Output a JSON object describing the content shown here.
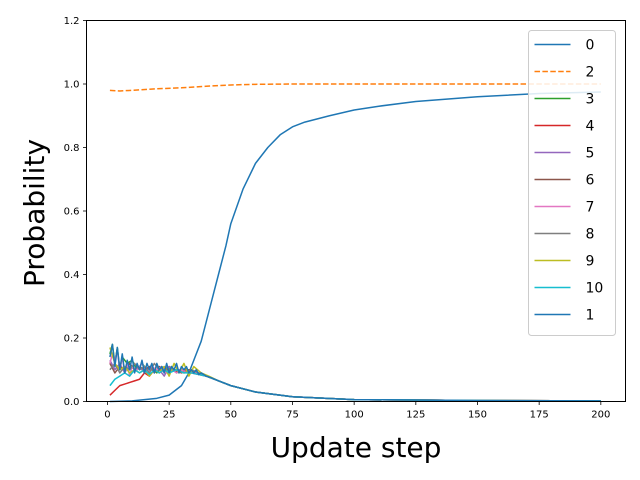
{
  "chart_data": {
    "type": "line",
    "title": "",
    "xlabel": "Update step",
    "ylabel": "Probability",
    "xlim": [
      -8.5,
      210
    ],
    "ylim": [
      0,
      1.2
    ],
    "x_ticks": [
      0,
      25,
      50,
      75,
      100,
      125,
      150,
      175,
      200
    ],
    "y_ticks": [
      0.0,
      0.2,
      0.4,
      0.6,
      0.8,
      1.0,
      1.2
    ],
    "x_tick_labels": [
      "0",
      "25",
      "50",
      "75",
      "100",
      "125",
      "150",
      "175",
      "200"
    ],
    "y_tick_labels": [
      "0.0",
      "0.2",
      "0.4",
      "0.6",
      "0.8",
      "1.0",
      "1.2"
    ],
    "grid": false,
    "legend_position": "upper right",
    "series": [
      {
        "name": "0",
        "color": "#1f77b4",
        "dash": "solid",
        "x": [
          1,
          10,
          20,
          25,
          30,
          33,
          35,
          38,
          40,
          42,
          45,
          48,
          50,
          55,
          60,
          65,
          70,
          75,
          80,
          90,
          100,
          110,
          125,
          150,
          175,
          200
        ],
        "y": [
          0.0,
          0.002,
          0.01,
          0.02,
          0.05,
          0.09,
          0.13,
          0.19,
          0.25,
          0.31,
          0.4,
          0.49,
          0.56,
          0.67,
          0.75,
          0.8,
          0.84,
          0.865,
          0.88,
          0.9,
          0.918,
          0.93,
          0.945,
          0.96,
          0.97,
          0.975
        ]
      },
      {
        "name": "2",
        "color": "#ff7f0e",
        "dash": "dashed",
        "x": [
          1,
          5,
          10,
          20,
          30,
          40,
          50,
          60,
          75,
          100,
          125,
          150,
          175,
          200
        ],
        "y": [
          0.98,
          0.978,
          0.98,
          0.985,
          0.988,
          0.993,
          0.997,
          0.999,
          1.0,
          1.0,
          1.0,
          1.0,
          1.0,
          1.0
        ]
      },
      {
        "name": "3",
        "color": "#2ca02c",
        "dash": "solid",
        "x": [
          1,
          2,
          3,
          4,
          5,
          6,
          8,
          10,
          12,
          14,
          16,
          18,
          20,
          22,
          24,
          26,
          28,
          30,
          33,
          36,
          40,
          45,
          50,
          60,
          75,
          100,
          150,
          200
        ],
        "y": [
          0.15,
          0.18,
          0.12,
          0.17,
          0.1,
          0.14,
          0.12,
          0.13,
          0.1,
          0.12,
          0.1,
          0.11,
          0.09,
          0.11,
          0.1,
          0.11,
          0.09,
          0.1,
          0.1,
          0.09,
          0.08,
          0.065,
          0.05,
          0.03,
          0.015,
          0.006,
          0.003,
          0.002
        ]
      },
      {
        "name": "4",
        "color": "#d62728",
        "dash": "solid",
        "x": [
          1,
          3,
          5,
          7,
          9,
          11,
          13,
          15,
          17,
          19,
          21,
          23,
          25,
          28,
          31,
          34,
          37,
          40,
          45,
          50,
          60,
          75,
          100,
          150,
          200
        ],
        "y": [
          0.02,
          0.035,
          0.05,
          0.055,
          0.06,
          0.065,
          0.07,
          0.09,
          0.08,
          0.1,
          0.09,
          0.1,
          0.11,
          0.095,
          0.1,
          0.09,
          0.085,
          0.08,
          0.065,
          0.05,
          0.03,
          0.015,
          0.006,
          0.003,
          0.002
        ]
      },
      {
        "name": "5",
        "color": "#9467bd",
        "dash": "solid",
        "x": [
          1,
          3,
          5,
          7,
          9,
          11,
          13,
          15,
          17,
          19,
          21,
          23,
          25,
          27,
          29,
          31,
          34,
          37,
          40,
          45,
          50,
          60,
          75,
          100,
          150,
          200
        ],
        "y": [
          0.13,
          0.1,
          0.12,
          0.09,
          0.12,
          0.1,
          0.11,
          0.09,
          0.11,
          0.1,
          0.1,
          0.08,
          0.11,
          0.1,
          0.1,
          0.09,
          0.1,
          0.09,
          0.08,
          0.065,
          0.05,
          0.03,
          0.015,
          0.006,
          0.003,
          0.002
        ]
      },
      {
        "name": "6",
        "color": "#8c564b",
        "dash": "solid",
        "x": [
          1,
          3,
          5,
          7,
          9,
          11,
          13,
          15,
          17,
          19,
          21,
          24,
          27,
          30,
          33,
          36,
          40,
          45,
          50,
          60,
          75,
          100,
          150,
          200
        ],
        "y": [
          0.12,
          0.09,
          0.11,
          0.1,
          0.12,
          0.1,
          0.11,
          0.1,
          0.11,
          0.09,
          0.11,
          0.1,
          0.1,
          0.09,
          0.1,
          0.09,
          0.08,
          0.065,
          0.05,
          0.03,
          0.015,
          0.006,
          0.003,
          0.002
        ]
      },
      {
        "name": "7",
        "color": "#e377c2",
        "dash": "solid",
        "x": [
          1,
          2,
          3,
          4,
          5,
          6,
          7,
          8,
          9,
          10,
          12,
          14,
          16,
          18,
          20,
          22,
          24,
          26,
          28,
          30,
          33,
          36,
          40,
          45,
          50,
          60,
          75,
          100,
          150,
          200
        ],
        "y": [
          0.12,
          0.15,
          0.13,
          0.16,
          0.1,
          0.14,
          0.09,
          0.12,
          0.08,
          0.11,
          0.1,
          0.12,
          0.09,
          0.11,
          0.1,
          0.11,
          0.09,
          0.1,
          0.09,
          0.1,
          0.09,
          0.09,
          0.08,
          0.065,
          0.05,
          0.03,
          0.015,
          0.006,
          0.003,
          0.002
        ]
      },
      {
        "name": "8",
        "color": "#7f7f7f",
        "dash": "solid",
        "x": [
          1,
          3,
          5,
          7,
          9,
          11,
          13,
          15,
          17,
          19,
          21,
          23,
          25,
          28,
          31,
          34,
          37,
          40,
          45,
          50,
          60,
          75,
          100,
          150,
          200
        ],
        "y": [
          0.1,
          0.12,
          0.09,
          0.11,
          0.1,
          0.12,
          0.1,
          0.11,
          0.09,
          0.12,
          0.1,
          0.11,
          0.1,
          0.1,
          0.09,
          0.1,
          0.09,
          0.08,
          0.065,
          0.05,
          0.03,
          0.015,
          0.006,
          0.003,
          0.002
        ]
      },
      {
        "name": "9",
        "color": "#bcbd22",
        "dash": "solid",
        "x": [
          1,
          3,
          5,
          7,
          9,
          11,
          13,
          15,
          17,
          19,
          21,
          23,
          25,
          27,
          29,
          31,
          33,
          35,
          38,
          41,
          45,
          50,
          60,
          75,
          100,
          150,
          200
        ],
        "y": [
          0.17,
          0.12,
          0.1,
          0.11,
          0.09,
          0.1,
          0.09,
          0.1,
          0.08,
          0.1,
          0.09,
          0.11,
          0.08,
          0.12,
          0.09,
          0.12,
          0.08,
          0.11,
          0.09,
          0.08,
          0.065,
          0.05,
          0.03,
          0.015,
          0.006,
          0.003,
          0.002
        ]
      },
      {
        "name": "10",
        "color": "#17becf",
        "dash": "solid",
        "x": [
          1,
          3,
          5,
          7,
          9,
          11,
          13,
          15,
          17,
          19,
          21,
          23,
          25,
          28,
          31,
          34,
          37,
          40,
          45,
          50,
          60,
          75,
          100,
          150,
          200
        ],
        "y": [
          0.05,
          0.07,
          0.08,
          0.09,
          0.08,
          0.1,
          0.09,
          0.1,
          0.085,
          0.1,
          0.09,
          0.1,
          0.09,
          0.1,
          0.09,
          0.09,
          0.085,
          0.08,
          0.065,
          0.05,
          0.03,
          0.015,
          0.006,
          0.003,
          0.002
        ]
      },
      {
        "name": "1",
        "color": "#1f77b4",
        "dash": "solid",
        "x": [
          1,
          2,
          3,
          4,
          5,
          6,
          7,
          8,
          9,
          10,
          11,
          12,
          13,
          14,
          15,
          16,
          17,
          18,
          19,
          20,
          21,
          22,
          23,
          24,
          25,
          26,
          27,
          28,
          29,
          30,
          31,
          32,
          33,
          34,
          35,
          36,
          37,
          38,
          40,
          42,
          45,
          50,
          55,
          60,
          75,
          100,
          150,
          200
        ],
        "y": [
          0.14,
          0.18,
          0.11,
          0.17,
          0.1,
          0.15,
          0.09,
          0.13,
          0.1,
          0.14,
          0.09,
          0.12,
          0.1,
          0.13,
          0.09,
          0.12,
          0.1,
          0.12,
          0.09,
          0.12,
          0.1,
          0.11,
          0.09,
          0.12,
          0.09,
          0.11,
          0.1,
          0.12,
          0.09,
          0.11,
          0.1,
          0.11,
          0.09,
          0.1,
          0.09,
          0.1,
          0.085,
          0.09,
          0.08,
          0.075,
          0.065,
          0.05,
          0.04,
          0.03,
          0.015,
          0.006,
          0.003,
          0.002
        ]
      }
    ]
  }
}
